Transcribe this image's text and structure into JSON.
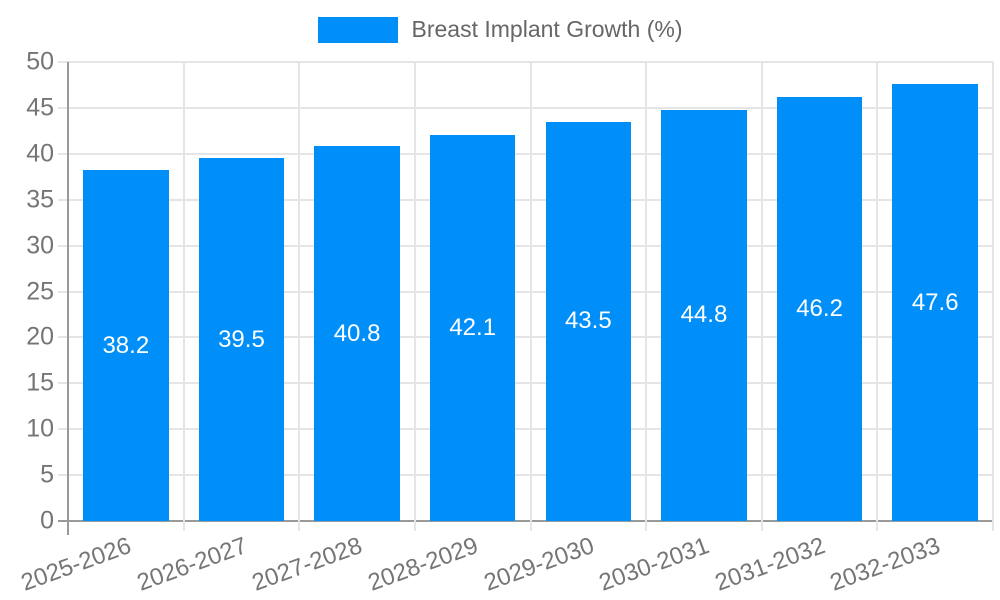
{
  "legend": {
    "label": "Breast Implant Growth (%)",
    "swatch_color": "#008FF8"
  },
  "chart_data": {
    "type": "bar",
    "title": "",
    "xlabel": "",
    "ylabel": "",
    "categories": [
      "2025-2026",
      "2026-2027",
      "2027-2028",
      "2028-2029",
      "2029-2030",
      "2030-2031",
      "2031-2032",
      "2032-2033"
    ],
    "series": [
      {
        "name": "Breast Implant Growth (%)",
        "values": [
          38.2,
          39.5,
          40.8,
          42.1,
          43.5,
          44.8,
          46.2,
          47.6
        ]
      }
    ],
    "value_labels_shown": true,
    "value_label_position": "center-of-bar",
    "ylim": [
      0,
      50
    ],
    "yticks": [
      0,
      5,
      10,
      15,
      20,
      25,
      30,
      35,
      40,
      45,
      50
    ],
    "grid": true,
    "x_label_rotation_deg": -20,
    "legend_position": "top-center",
    "colors": {
      "bar": "#008FF8",
      "gridline": "#e5e5e5",
      "axis_line": "#9a9a9a",
      "tick_text": "#757575",
      "legend_text": "#666666",
      "value_label_text": "#ffffff",
      "background": "#ffffff"
    }
  }
}
